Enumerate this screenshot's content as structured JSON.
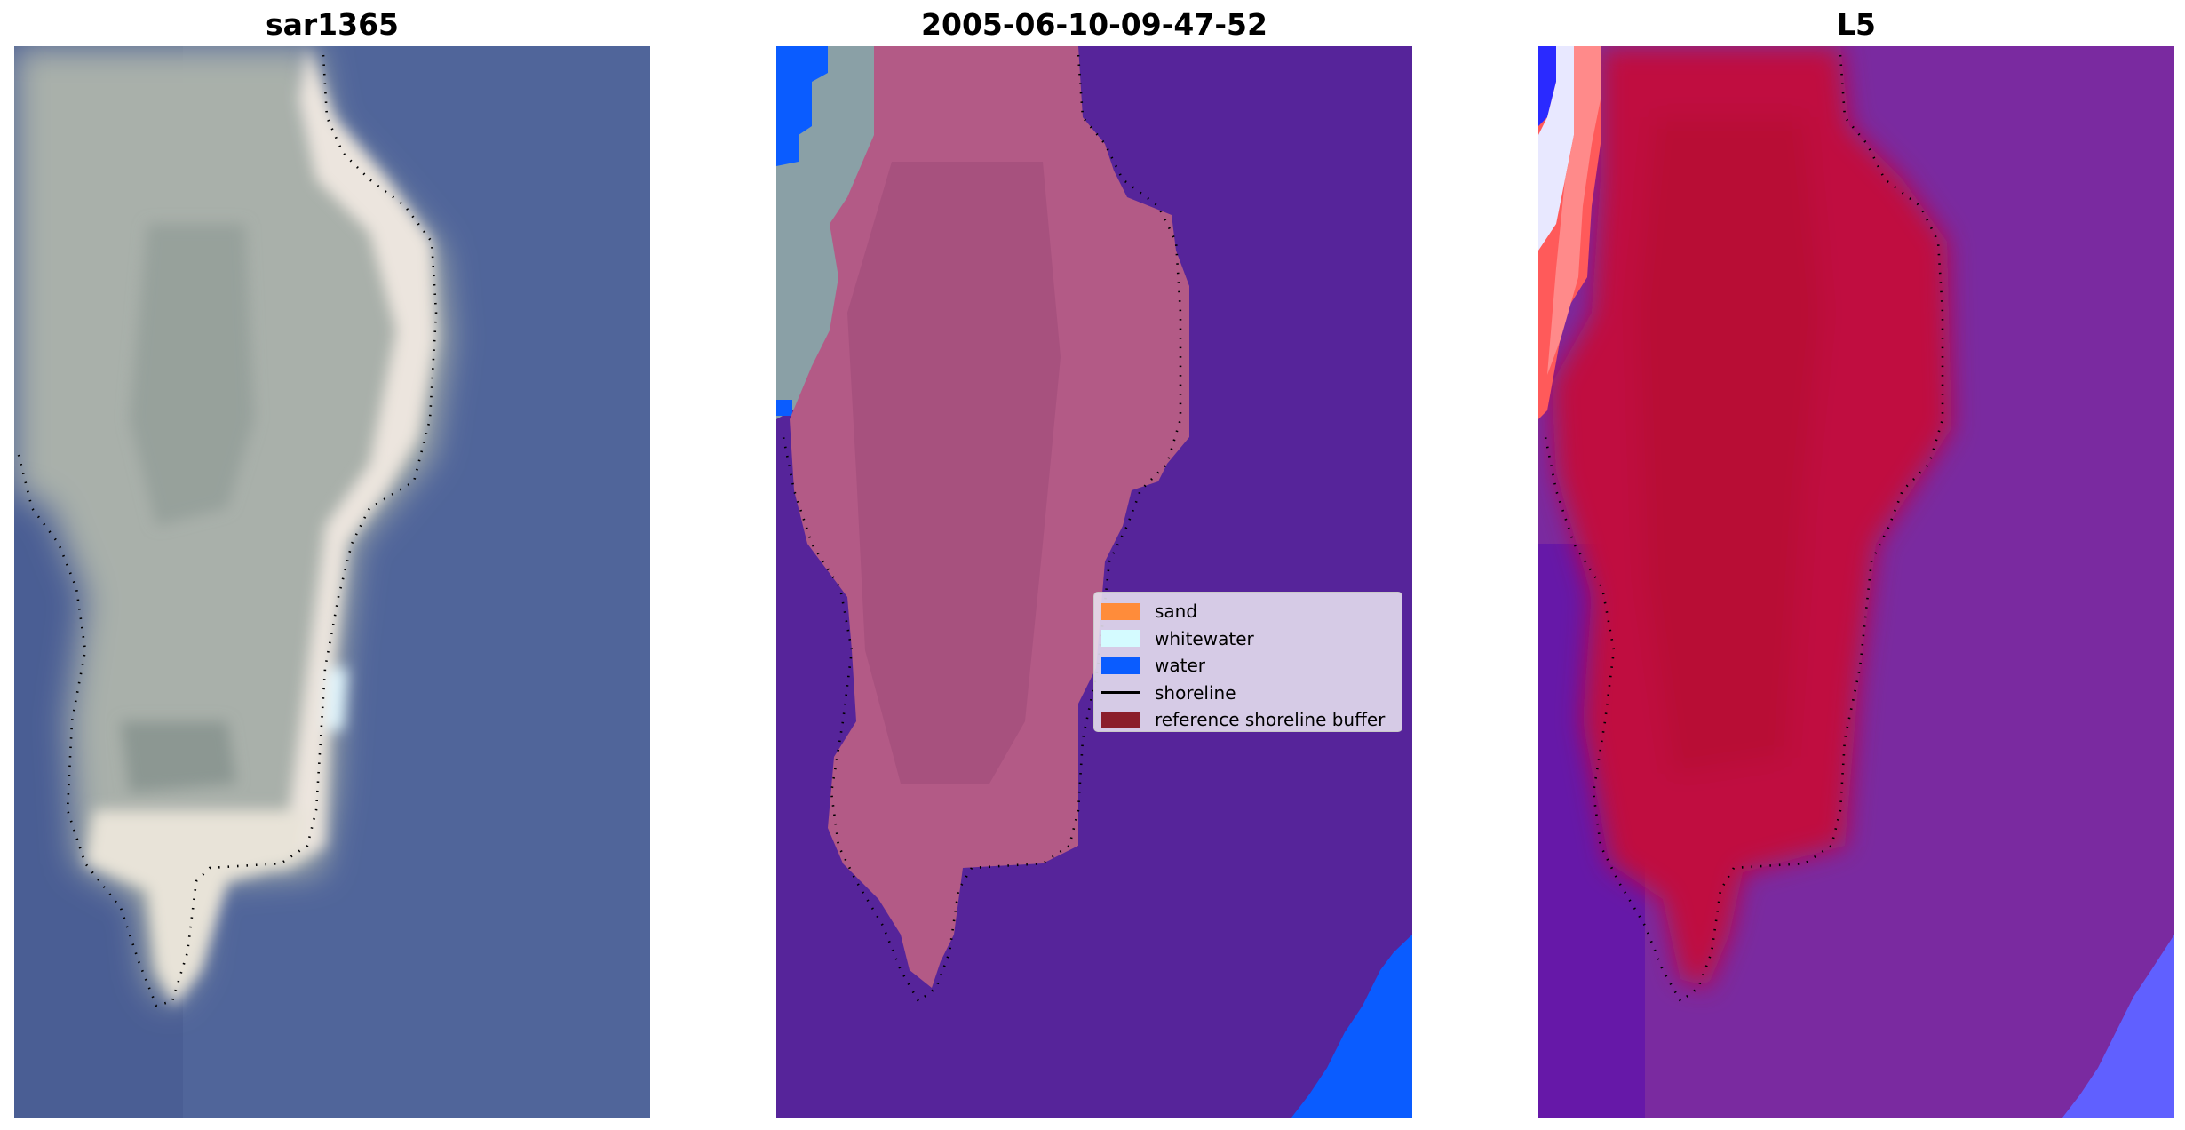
{
  "panels": [
    {
      "title": "sar1365"
    },
    {
      "title": "2005-06-10-09-47-52"
    },
    {
      "title": "L5"
    }
  ],
  "legend": {
    "items": [
      {
        "label": "sand",
        "color": "#ff8c3a",
        "kind": "patch"
      },
      {
        "label": "whitewater",
        "color": "#d4fbff",
        "kind": "patch"
      },
      {
        "label": "water",
        "color": "#0a5cff",
        "kind": "patch"
      },
      {
        "label": "shoreline",
        "color": "#000000",
        "kind": "line"
      },
      {
        "label": "reference shoreline buffer",
        "color": "#8b1e2b",
        "kind": "patch"
      }
    ]
  },
  "colors": {
    "rgb_water": "#50659a",
    "rgb_land": "#a8b0a8",
    "class_water": "#56249a",
    "class_sand_overlay": "#b35a86",
    "class_blue": "#0a5cff",
    "mndwi_water": "#7a2aa0",
    "mndwi_land": "#c01040"
  }
}
